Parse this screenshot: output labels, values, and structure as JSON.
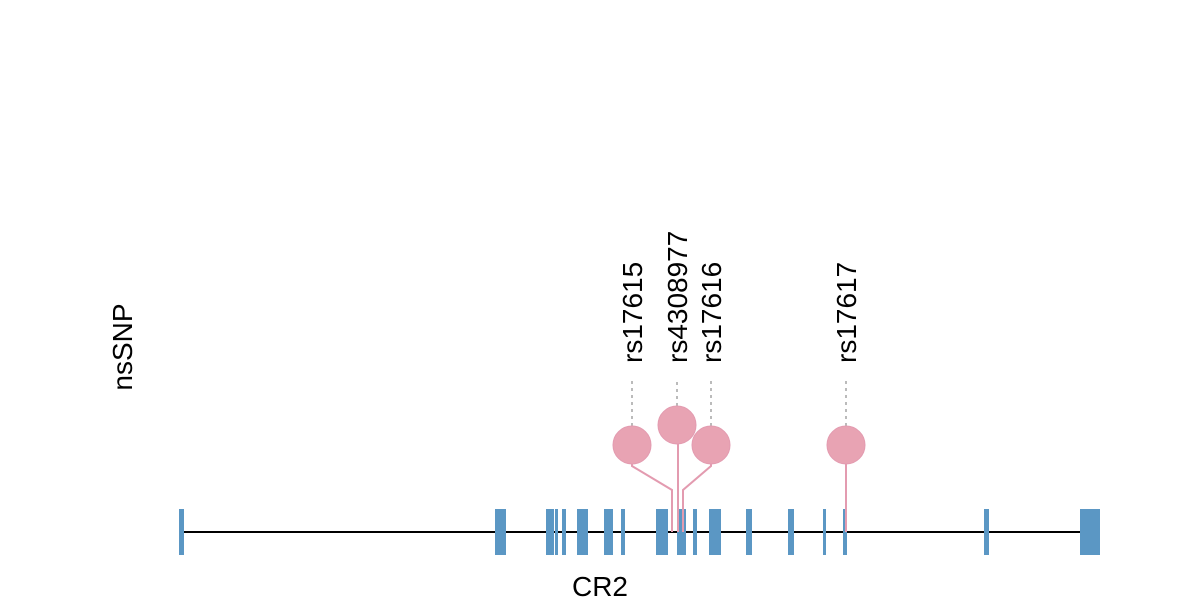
{
  "track_label": "nsSNP",
  "gene_label": "CR2",
  "snps": [
    {
      "label": "rs17615"
    },
    {
      "label": "rs4308977"
    },
    {
      "label": "rs17616"
    },
    {
      "label": "rs17617"
    }
  ]
}
